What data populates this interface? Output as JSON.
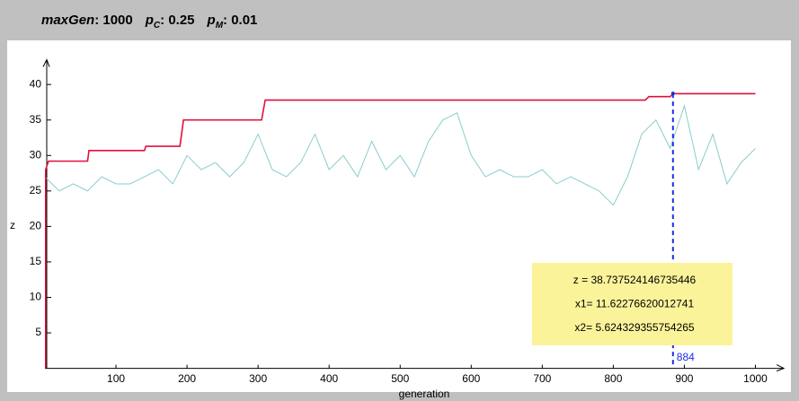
{
  "header": [
    {
      "symbol": "maxGen",
      "text": ": 1000"
    },
    {
      "symbol": "p",
      "subscript": "C",
      "text": ": 0.25"
    },
    {
      "symbol": "p",
      "subscript": "M",
      "text": ": 0.01"
    }
  ],
  "chart_data": {
    "type": "line",
    "xlabel": "generation",
    "ylabel": "z",
    "xlim": [
      0,
      1040
    ],
    "ylim": [
      0,
      43.5
    ],
    "xticks": [
      100,
      200,
      300,
      400,
      500,
      600,
      700,
      800,
      900,
      1000
    ],
    "yticks": [
      5,
      10,
      15,
      20,
      25,
      30,
      35,
      40
    ],
    "series": [
      {
        "color": "#8ccccc",
        "x": [
          0,
          20,
          40,
          60,
          80,
          100,
          120,
          140,
          160,
          180,
          200,
          220,
          240,
          260,
          280,
          300,
          320,
          340,
          360,
          380,
          400,
          420,
          440,
          460,
          480,
          500,
          520,
          540,
          560,
          580,
          600,
          620,
          640,
          660,
          680,
          700,
          720,
          740,
          760,
          780,
          800,
          820,
          840,
          860,
          880,
          900,
          920,
          940,
          960,
          980,
          1000
        ],
        "values": [
          27,
          25,
          26,
          25,
          27,
          26,
          26,
          27,
          28,
          26,
          30,
          28,
          29,
          27,
          29,
          33,
          28,
          27,
          29,
          33,
          28,
          30,
          27,
          32,
          28,
          30,
          27,
          32,
          35,
          36,
          30,
          27,
          28,
          27,
          27,
          28,
          26,
          27,
          26,
          25,
          23,
          27,
          33,
          35,
          31,
          37,
          28,
          33,
          26,
          29,
          31
        ]
      },
      {
        "color": "#e0103c",
        "x": [
          1,
          1,
          5,
          60,
          62,
          140,
          142,
          190,
          195,
          305,
          310,
          845,
          850,
          880,
          884,
          1000
        ],
        "values": [
          0,
          28,
          29.2,
          29.2,
          30.7,
          30.7,
          31.3,
          31.3,
          35,
          35,
          37.8,
          37.8,
          38.3,
          38.3,
          38.7,
          38.7
        ]
      }
    ],
    "marker": {
      "x": 884,
      "y": 38.737524146735446,
      "label": 884
    },
    "annotation": [
      "z = 38.737524146735446",
      "x1= 11.62276620012741",
      "x2= 5.624329355754265"
    ]
  }
}
